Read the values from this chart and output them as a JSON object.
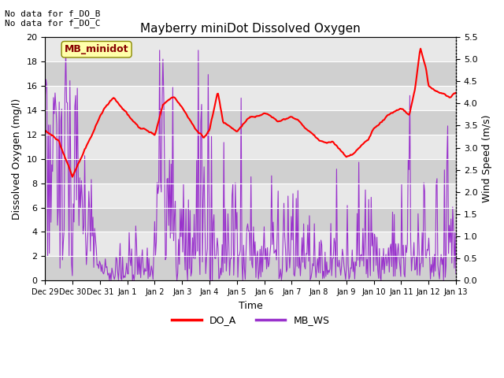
{
  "title": "Mayberry miniDot Dissolved Oxygen",
  "xlabel": "Time",
  "ylabel_left": "Dissolved Oxygen (mg/l)",
  "ylabel_right": "Wind Speed (m/s)",
  "annotation1": "No data for f_DO_B",
  "annotation2": "No data for f_DO_C",
  "legend_box_label": "MB_minidot",
  "legend_items": [
    "DO_A",
    "MB_WS"
  ],
  "do_color": "#ff0000",
  "ws_color": "#9932cc",
  "plot_bg_color": "#e8e8e8",
  "band_color": "#d0d0d0",
  "fig_bg_color": "#ffffff",
  "ylim_left": [
    0,
    20
  ],
  "ylim_right": [
    0,
    5.5
  ],
  "yticks_left": [
    0,
    2,
    4,
    6,
    8,
    10,
    12,
    14,
    16,
    18,
    20
  ],
  "yticks_right": [
    0.0,
    0.5,
    1.0,
    1.5,
    2.0,
    2.5,
    3.0,
    3.5,
    4.0,
    4.5,
    5.0,
    5.5
  ],
  "n_points": 500
}
